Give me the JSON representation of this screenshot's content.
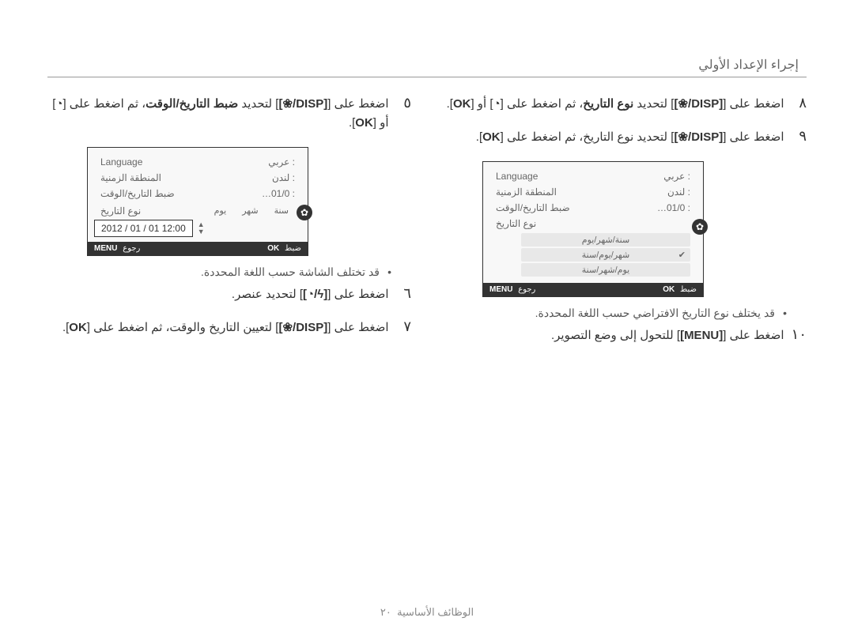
{
  "header": "إجراء الإعداد الأولي",
  "footer": {
    "label": "الوظائف الأساسية",
    "page": "٢٠"
  },
  "icons": {
    "flower": "❀",
    "disp": "DISP",
    "timer": "◔",
    "ok": "OK",
    "flash": "ϟ",
    "gear": "✿",
    "menu": "MENU"
  },
  "right_column": {
    "step5": {
      "num": "٥",
      "text_a": "اضغط على [",
      "text_b": "] لتحديد ",
      "text_c": "ضبط التاريخ/الوقت",
      "text_d": "، ثم اضغط على [",
      "text_e": "] أو [",
      "text_f": "]."
    },
    "screenshot1": {
      "rows": [
        {
          "label": "Language",
          "value": ": عربي"
        },
        {
          "label": "المنطقة الزمنية",
          "value": ": لندن"
        },
        {
          "label": "ضبط التاريخ/الوقت",
          "value": ": 01/0…"
        },
        {
          "label": "نوع التاريخ",
          "value": ""
        }
      ],
      "date_header": [
        "يوم",
        "شهر",
        "سنة"
      ],
      "date_value": "2012 / 01 / 01 12:00",
      "footer_left_btn": "MENU",
      "footer_left_label": "رجوع",
      "footer_right_btn": "OK",
      "footer_right_label": "ضبط"
    },
    "note1": "قد تختلف الشاشة حسب اللغة المحددة.",
    "step6": {
      "num": "٦",
      "text_a": "اضغط على [",
      "text_b": "] لتحديد عنصر."
    },
    "step7": {
      "num": "٧",
      "text_a": "اضغط على [",
      "text_b": "] لتعيين التاريخ والوقت، ثم اضغط على [",
      "text_c": "]."
    }
  },
  "left_column": {
    "step8": {
      "num": "٨",
      "text_a": "اضغط على [",
      "text_b": "] لتحديد ",
      "text_c": "نوع التاريخ",
      "text_d": "، ثم اضغط على [",
      "text_e": "] أو [",
      "text_f": "]."
    },
    "step9": {
      "num": "٩",
      "text_a": "اضغط على [",
      "text_b": "] لتحديد نوع التاريخ، ثم اضغط على [",
      "text_c": "]."
    },
    "screenshot2": {
      "rows": [
        {
          "label": "Language",
          "value": ": عربي"
        },
        {
          "label": "المنطقة الزمنية",
          "value": ": لندن"
        },
        {
          "label": "ضبط التاريخ/الوقت",
          "value": ": 01/0…"
        },
        {
          "label": "نوع التاريخ",
          "value": ""
        }
      ],
      "options": [
        {
          "label": "سنة/شهر/يوم",
          "selected": false
        },
        {
          "label": "شهر/يوم/سنة",
          "selected": true
        },
        {
          "label": "يوم/شهر/سنة",
          "selected": false
        }
      ],
      "footer_left_btn": "MENU",
      "footer_left_label": "رجوع",
      "footer_right_btn": "OK",
      "footer_right_label": "ضبط"
    },
    "note2": "قد يختلف نوع التاريخ الافتراضي حسب اللغة المحددة.",
    "step10": {
      "num": "١٠",
      "text_a": "اضغط على [",
      "text_b": "] للتحول إلى وضع التصوير."
    }
  }
}
